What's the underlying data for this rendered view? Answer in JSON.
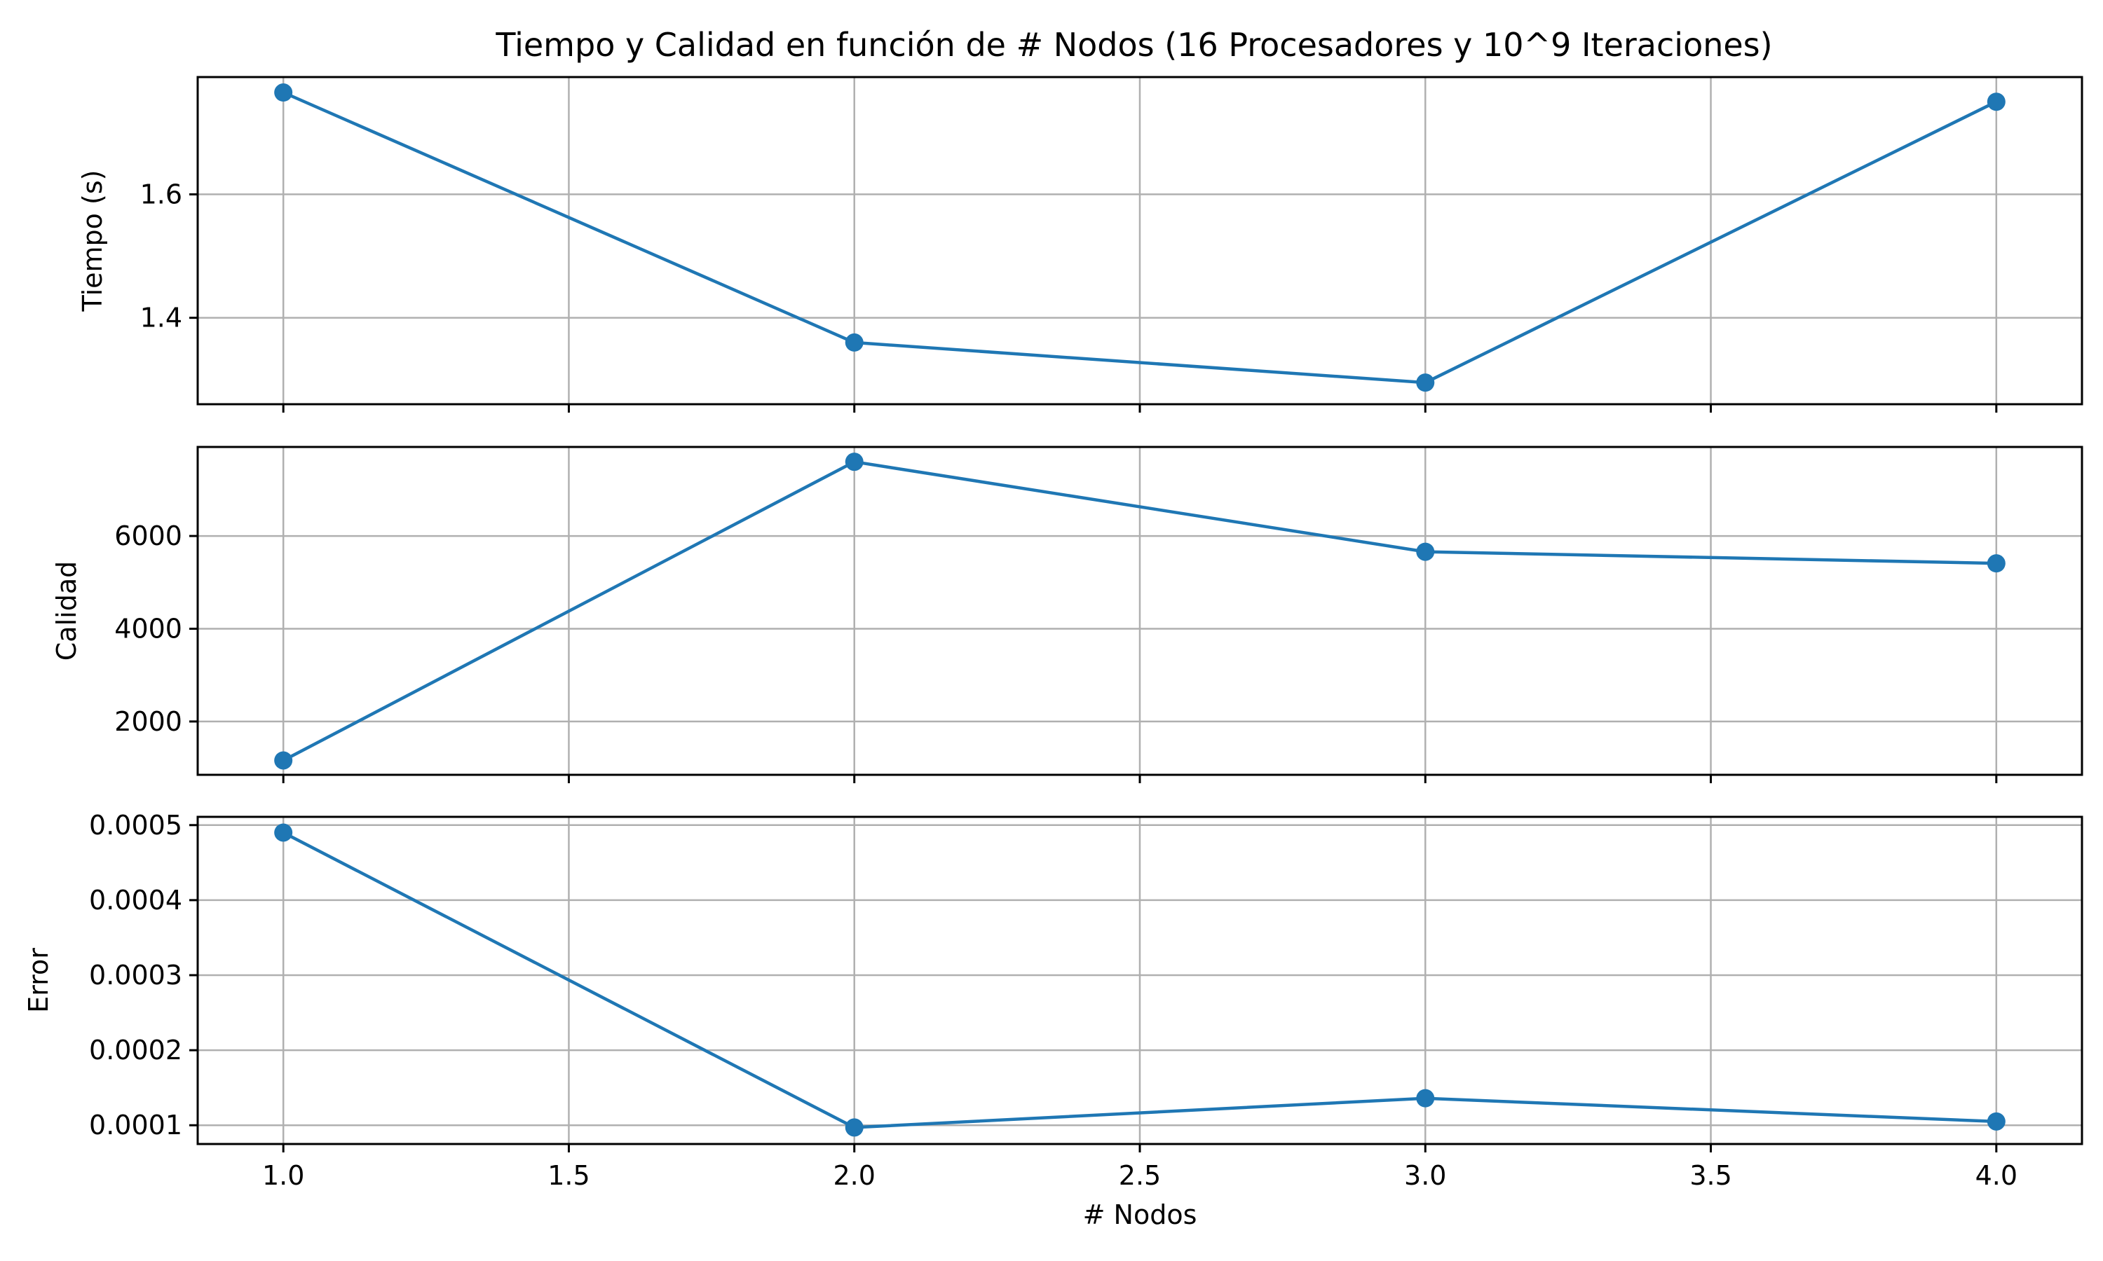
{
  "chart_data": {
    "type": "line",
    "title": "Tiempo y Calidad en función de # Nodos (16 Procesadores y 10^9 Iteraciones)",
    "shared_x": true,
    "xlabel": "# Nodos",
    "xlim": [
      0.85,
      4.15
    ],
    "x_ticks": [
      1.0,
      1.5,
      2.0,
      2.5,
      3.0,
      3.5,
      4.0
    ],
    "x_tick_labels": [
      "1.0",
      "1.5",
      "2.0",
      "2.5",
      "3.0",
      "3.5",
      "4.0"
    ],
    "grid": true,
    "color": "#1f77b4",
    "marker": "circle",
    "panels": [
      {
        "ylabel": "Tiempo (s)",
        "ylim": [
          1.26,
          1.79
        ],
        "y_ticks": [
          1.4,
          1.6
        ],
        "y_tick_labels": [
          "1.4",
          "1.6"
        ],
        "series": [
          {
            "x": [
              1,
              2,
              3,
              4
            ],
            "values": [
              1.765,
              1.36,
              1.295,
              1.75
            ]
          }
        ]
      },
      {
        "ylabel": "Calidad",
        "ylim": [
          850,
          7920
        ],
        "y_ticks": [
          2000,
          4000,
          6000
        ],
        "y_tick_labels": [
          "2000",
          "4000",
          "6000"
        ],
        "series": [
          {
            "x": [
              1,
              2,
              3,
              4
            ],
            "values": [
              1160,
              7600,
              5660,
              5410
            ]
          }
        ]
      },
      {
        "ylabel": "Error",
        "ylim": [
          7.5e-05,
          0.000511
        ],
        "y_ticks": [
          0.0001,
          0.0002,
          0.0003,
          0.0004,
          0.0005
        ],
        "y_tick_labels": [
          "0.0001",
          "0.0002",
          "0.0003",
          "0.0004",
          "0.0005"
        ],
        "series": [
          {
            "x": [
              1,
              2,
              3,
              4
            ],
            "values": [
              0.00049,
              9.7e-05,
              0.000136,
              0.000105
            ]
          }
        ]
      }
    ]
  }
}
